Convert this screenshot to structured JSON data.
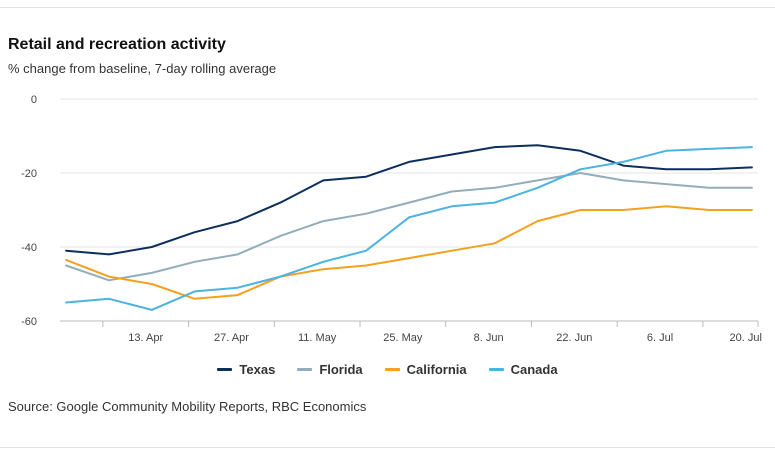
{
  "title": "Retail and recreation activity",
  "subtitle": "% change from baseline, 7-day rolling average",
  "source": "Source: Google Community Mobility Reports, RBC Economics",
  "chart_data": {
    "type": "line",
    "x": [
      "2020-03-31",
      "2020-04-07",
      "2020-04-14",
      "2020-04-21",
      "2020-04-28",
      "2020-05-05",
      "2020-05-12",
      "2020-05-19",
      "2020-05-26",
      "2020-06-02",
      "2020-06-09",
      "2020-06-16",
      "2020-06-23",
      "2020-06-30",
      "2020-07-07",
      "2020-07-14",
      "2020-07-21"
    ],
    "xticks": [
      "13. Apr",
      "27. Apr",
      "11. May",
      "25. May",
      "8. Jun",
      "22. Jun",
      "6. Jul",
      "20. Jul"
    ],
    "yticks": [
      "0",
      "-20",
      "-40",
      "-60"
    ],
    "ylim": [
      -60,
      0
    ],
    "grid": true,
    "legend_position": "bottom",
    "series": [
      {
        "name": "Texas",
        "color": "#0d2f5e",
        "values": [
          -41,
          -42,
          -40,
          -36,
          -33,
          -28,
          -22,
          -21,
          -17,
          -15,
          -13,
          -12.5,
          -14,
          -18,
          -19,
          -19,
          -18.5
        ]
      },
      {
        "name": "Florida",
        "color": "#93adbb",
        "values": [
          -45,
          -49,
          -47,
          -44,
          -42,
          -37,
          -33,
          -31,
          -28,
          -25,
          -24,
          -22,
          -20,
          -22,
          -23,
          -24,
          -24
        ]
      },
      {
        "name": "California",
        "color": "#f4a11d",
        "values": [
          -43.5,
          -48,
          -50,
          -54,
          -53,
          -48,
          -46,
          -45,
          -43,
          -41,
          -39,
          -33,
          -30,
          -30,
          -29,
          -30,
          -30
        ]
      },
      {
        "name": "Canada",
        "color": "#4bb3e1",
        "values": [
          -55,
          -54,
          -57,
          -52,
          -51,
          -48,
          -44,
          -41,
          -32,
          -29,
          -28,
          -24,
          -19,
          -17,
          -14,
          -13.5,
          -13
        ]
      }
    ]
  }
}
